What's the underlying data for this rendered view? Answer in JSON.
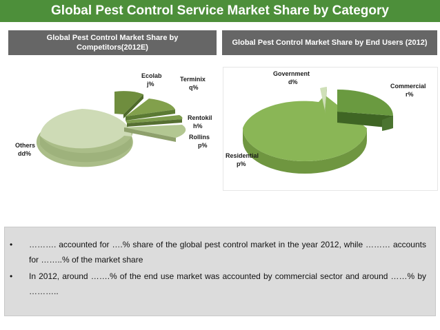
{
  "header": {
    "title": "Global Pest Control Service Market Share by Category"
  },
  "subheads": {
    "competitors": "Global Pest Control Market Share by Competitors(2012E)",
    "end_users": "Global Pest Control Market Share by End Users (2012)"
  },
  "chart_data": [
    {
      "type": "pie",
      "title": "Global Pest Control Market Share by Competitors(2012E)",
      "slices": [
        {
          "name": "Ecolab",
          "value_label": "j%"
        },
        {
          "name": "Terminix",
          "value_label": "q%"
        },
        {
          "name": "Rentokil",
          "value_label": "h%"
        },
        {
          "name": "Rollins",
          "value_label": "p%"
        },
        {
          "name": "Others",
          "value_label": "dd%"
        }
      ],
      "colors": [
        "#6f8d3e",
        "#82a04c",
        "#7d9c4c",
        "#b3c792",
        "#cedbb6"
      ]
    },
    {
      "type": "pie",
      "title": "Global Pest Control Market Share by End Users (2012)",
      "slices": [
        {
          "name": "Government",
          "value_label": "d%"
        },
        {
          "name": "Commercial",
          "value_label": "r%"
        },
        {
          "name": "Residential",
          "value_label": "p%"
        }
      ],
      "colors": [
        "#cfe0b8",
        "#6a9a40",
        "#8ab656"
      ]
    }
  ],
  "bullets": [
    {
      "marker": "•",
      "text": "………. accounted for ….% share of the global pest control market in the year 2012, while ……… accounts for ……..% of the market share"
    },
    {
      "marker": "•",
      "text": "In 2012, around …….% of the end use market was accounted by commercial sector and around ……% by ……….."
    }
  ]
}
